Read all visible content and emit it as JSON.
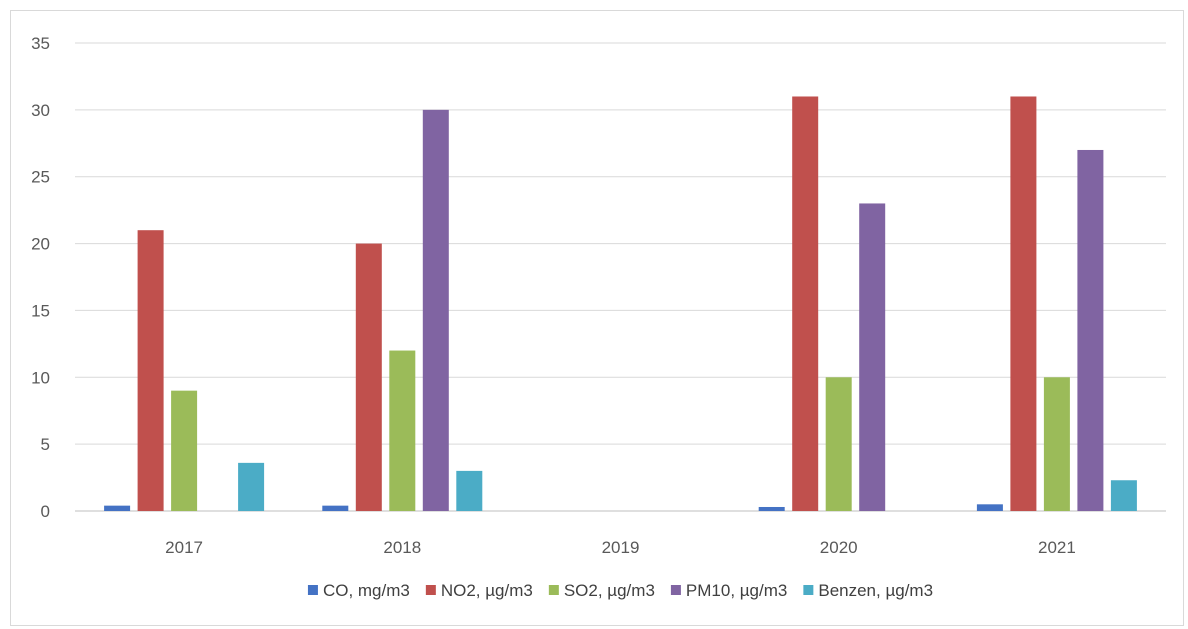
{
  "chart_data": {
    "type": "bar",
    "categories": [
      "2017",
      "2018",
      "2019",
      "2020",
      "2021"
    ],
    "series": [
      {
        "name": "CO, mg/m3",
        "color": "#4472c4",
        "values": [
          0.4,
          0.4,
          null,
          0.3,
          0.5
        ]
      },
      {
        "name": "NO2, µg/m3",
        "color": "#c0504d",
        "values": [
          21,
          20,
          null,
          31,
          31
        ]
      },
      {
        "name": "SO2, µg/m3",
        "color": "#9bbb59",
        "values": [
          9,
          12,
          null,
          10,
          10
        ]
      },
      {
        "name": "PM10, µg/m3",
        "color": "#8064a2",
        "values": [
          null,
          30,
          null,
          23,
          27
        ]
      },
      {
        "name": "Benzen, µg/m3",
        "color": "#4bacc6",
        "values": [
          3.6,
          3,
          null,
          null,
          2.3
        ]
      }
    ],
    "y_ticks": [
      "0",
      "5",
      "10",
      "15",
      "20",
      "25",
      "30",
      "35"
    ],
    "ylim": [
      0,
      35
    ],
    "grid": true,
    "legend_position": "bottom"
  }
}
